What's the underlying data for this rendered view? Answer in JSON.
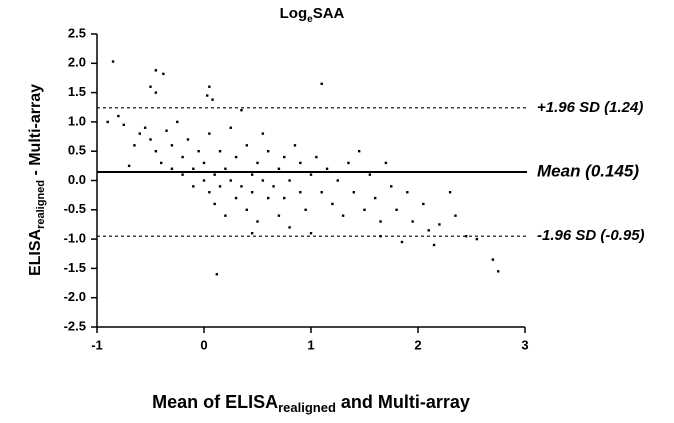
{
  "chart_data": {
    "type": "scatter",
    "title": [
      "Log",
      "e",
      "SAA"
    ],
    "y_label": [
      "ELISA",
      "realigned",
      " - Multi-array"
    ],
    "x_label": [
      "Mean of ELISA",
      "realigned",
      " and Multi-array"
    ],
    "xlim": [
      -1,
      3
    ],
    "ylim": [
      -2.5,
      2.5
    ],
    "xticks": [
      -1,
      0,
      1,
      2,
      3
    ],
    "yticks": [
      2.5,
      {
        "value": 2,
        "label": "2.0"
      },
      1.5,
      {
        "value": 1,
        "label": "1.0"
      },
      0.5,
      {
        "value": 0,
        "label": "0.0"
      },
      -0.5,
      {
        "value": -1,
        "label": "-1.0"
      },
      -1.5,
      {
        "value": -2,
        "label": "-2.0"
      },
      -2.5
    ],
    "color": "#000000",
    "reference_lines": [
      {
        "value": 1.24,
        "label": "+1.96 SD (1.24)",
        "style": "dashed"
      },
      {
        "value": 0.145,
        "label": "Mean (0.145)",
        "style": "solid"
      },
      {
        "value": -0.95,
        "label": "-1.96 SD (-0.95)",
        "style": "dashed"
      }
    ],
    "x": [
      -0.85,
      -0.45,
      -0.38,
      -0.5,
      -0.45,
      0.05,
      0.03,
      0.08,
      1.1,
      -0.9,
      -0.8,
      -0.75,
      -0.65,
      -0.6,
      -0.55,
      -0.5,
      -0.45,
      -0.4,
      -0.35,
      -0.3,
      -0.3,
      -0.25,
      -0.2,
      -0.2,
      -0.15,
      -0.1,
      -0.1,
      -0.05,
      0,
      0,
      0.05,
      0.05,
      0.1,
      0.1,
      0.15,
      0.15,
      0.2,
      0.2,
      0.25,
      0.25,
      0.3,
      0.3,
      0.35,
      0.35,
      0.4,
      0.4,
      0.45,
      0.45,
      0.5,
      0.5,
      0.55,
      0.55,
      0.6,
      0.6,
      0.65,
      0.7,
      0.7,
      0.75,
      0.75,
      0.8,
      0.8,
      0.85,
      0.9,
      0.9,
      0.95,
      1.0,
      1.0,
      1.05,
      1.1,
      1.15,
      1.2,
      1.25,
      1.3,
      1.35,
      1.4,
      1.45,
      1.5,
      1.55,
      1.6,
      1.65,
      1.7,
      1.75,
      1.8,
      1.85,
      1.9,
      1.95,
      2.05,
      2.1,
      2.15,
      2.2,
      2.3,
      2.35,
      2.45,
      2.55,
      2.7,
      2.75,
      0.12,
      -0.7,
      0.45,
      1.65
    ],
    "y": [
      2.03,
      1.88,
      1.82,
      1.6,
      1.5,
      1.6,
      1.45,
      1.38,
      1.65,
      1.0,
      1.1,
      0.95,
      0.6,
      0.8,
      0.9,
      0.7,
      0.5,
      0.3,
      0.85,
      0.6,
      0.2,
      1.0,
      0.4,
      0.1,
      0.7,
      0.2,
      -0.1,
      0.5,
      0.0,
      0.3,
      -0.2,
      0.8,
      0.1,
      -0.4,
      0.5,
      -0.1,
      0.2,
      -0.6,
      0.9,
      0.0,
      -0.3,
      0.4,
      -0.1,
      1.2,
      0.6,
      -0.5,
      0.1,
      -0.2,
      0.3,
      -0.7,
      0.0,
      0.8,
      -0.3,
      0.5,
      -0.1,
      0.2,
      -0.6,
      0.4,
      -0.3,
      0.0,
      -0.8,
      0.6,
      -0.2,
      0.3,
      -0.5,
      0.1,
      -0.9,
      0.4,
      -0.2,
      0.2,
      -0.4,
      0.0,
      -0.6,
      0.3,
      -0.2,
      0.5,
      -0.5,
      0.1,
      -0.3,
      -0.7,
      0.3,
      -0.1,
      -0.5,
      -1.05,
      -0.2,
      -0.7,
      -0.4,
      -0.85,
      -1.1,
      -0.75,
      -0.2,
      -0.6,
      -0.95,
      -1.0,
      -1.35,
      -1.55,
      -1.6,
      0.25,
      -0.9,
      -0.95
    ]
  }
}
